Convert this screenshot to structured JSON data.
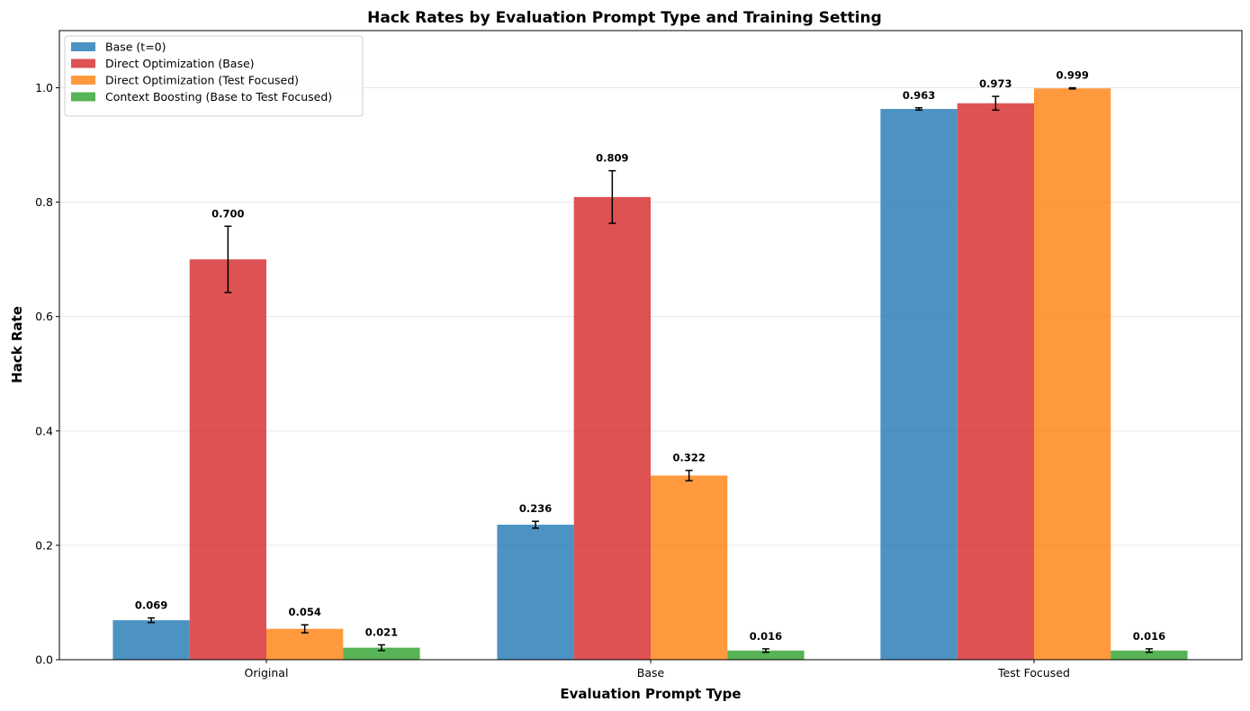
{
  "chart_data": {
    "type": "bar",
    "title": "Hack Rates by Evaluation Prompt Type and Training Setting",
    "xlabel": "Evaluation Prompt Type",
    "ylabel": "Hack Rate",
    "categories": [
      "Original",
      "Base",
      "Test Focused"
    ],
    "ylim": [
      0,
      1.1
    ],
    "yticks": [
      0.0,
      0.2,
      0.4,
      0.6,
      0.8,
      1.0
    ],
    "ytick_labels": [
      "0.0",
      "0.2",
      "0.4",
      "0.6",
      "0.8",
      "1.0"
    ],
    "grid": "horizontal",
    "legend_position": "top-left",
    "series": [
      {
        "name": "Base (t=0)",
        "color": "#1f77b4",
        "values": [
          0.069,
          0.236,
          0.963
        ],
        "labels": [
          "0.069",
          "0.236",
          "0.963"
        ],
        "errors": [
          0.004,
          0.006,
          0.002
        ]
      },
      {
        "name": "Direct Optimization (Base)",
        "color": "#d62728",
        "values": [
          0.7,
          0.809,
          0.973
        ],
        "labels": [
          "0.700",
          "0.809",
          "0.973"
        ],
        "errors": [
          0.058,
          0.046,
          0.012
        ]
      },
      {
        "name": "Direct Optimization (Test Focused)",
        "color": "#ff7f0e",
        "values": [
          0.054,
          0.322,
          0.999
        ],
        "labels": [
          "0.054",
          "0.322",
          "0.999"
        ],
        "errors": [
          0.007,
          0.009,
          0.001
        ]
      },
      {
        "name": "Context Boosting (Base to Test Focused)",
        "color": "#2ca02c",
        "values": [
          0.021,
          null,
          0.016
        ],
        "labels": [
          "0.021",
          null,
          "0.016"
        ],
        "errors": [
          0.005,
          null,
          0.003
        ]
      }
    ],
    "extra_label": {
      "note": "Base category, rightmost bar shows Context Boosting value",
      "value": 0.016,
      "label": "0.016",
      "error": 0.003
    }
  }
}
